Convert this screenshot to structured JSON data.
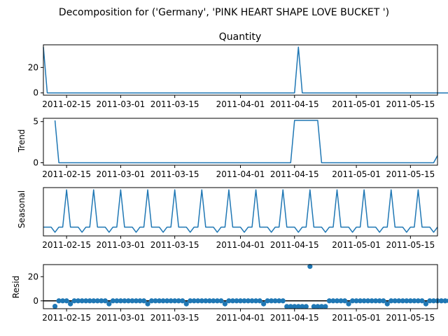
{
  "title": "Decomposition for ('Germany', 'PINK  HEART SHAPE LOVE BUCKET ')",
  "x_tick_labels": [
    "2011-02-15",
    "2011-03-01",
    "2011-03-15",
    "2011-04-01",
    "2011-04-15",
    "2011-05-01",
    "2011-05-15"
  ],
  "colors": {
    "line": "#1f77b4",
    "axis": "#000000",
    "background": "#ffffff"
  },
  "chart_data": [
    {
      "type": "line",
      "title": "Quantity",
      "ylabel": "",
      "x_start": "2011-02-09",
      "x_end": "2011-05-22",
      "ylim": [
        -1.8,
        37.8
      ],
      "yticks": [
        0,
        20
      ],
      "values": [
        36,
        0,
        0,
        0,
        0,
        0,
        0,
        0,
        0,
        0,
        0,
        0,
        0,
        0,
        0,
        0,
        0,
        0,
        0,
        0,
        0,
        0,
        0,
        0,
        0,
        0,
        0,
        0,
        0,
        0,
        0,
        0,
        0,
        0,
        0,
        0,
        0,
        0,
        0,
        0,
        0,
        0,
        0,
        0,
        0,
        0,
        0,
        0,
        0,
        0,
        0,
        0,
        0,
        0,
        0,
        0,
        0,
        0,
        0,
        0,
        0,
        0,
        0,
        0,
        0,
        0,
        36,
        0,
        0,
        0,
        0,
        0,
        0,
        0,
        0,
        0,
        0,
        0,
        0,
        0,
        0,
        0,
        0,
        0,
        0,
        0,
        0,
        0,
        0,
        0,
        0,
        0,
        0,
        0,
        0,
        0,
        0,
        0,
        0,
        0,
        0,
        0,
        0,
        0,
        0,
        0,
        0,
        0,
        0,
        0,
        0,
        0,
        0,
        0,
        0,
        0,
        0,
        0,
        0,
        0,
        0,
        0,
        0,
        0,
        0,
        0,
        0,
        0,
        0,
        0,
        0,
        0,
        0,
        0,
        0,
        0,
        0,
        0,
        0,
        0,
        0,
        0,
        0,
        0,
        0,
        0,
        0,
        6
      ]
    },
    {
      "type": "line",
      "title": "",
      "ylabel": "Trend",
      "x_start": "2011-02-12",
      "x_end": "2011-05-19",
      "ylim": [
        -0.3,
        5.4
      ],
      "yticks": [
        0,
        5
      ],
      "values": [
        5.14,
        0,
        0,
        0,
        0,
        0,
        0,
        0,
        0,
        0,
        0,
        0,
        0,
        0,
        0,
        0,
        0,
        0,
        0,
        0,
        0,
        0,
        0,
        0,
        0,
        0,
        0,
        0,
        0,
        0,
        0,
        0,
        0,
        0,
        0,
        0,
        0,
        0,
        0,
        0,
        0,
        0,
        0,
        0,
        0,
        0,
        0,
        0,
        0,
        0,
        0,
        0,
        0,
        0,
        0,
        0,
        0,
        0,
        0,
        0,
        0,
        0,
        5.14,
        5.14,
        5.14,
        5.14,
        5.14,
        5.14,
        5.14,
        0,
        0,
        0,
        0,
        0,
        0,
        0,
        0,
        0,
        0,
        0,
        0,
        0,
        0,
        0,
        0,
        0,
        0,
        0,
        0,
        0,
        0,
        0,
        0,
        0,
        0,
        0,
        0,
        0,
        0,
        0.86
      ]
    },
    {
      "type": "line",
      "title": "",
      "ylabel": "Seasonal",
      "x_start": "2011-02-09",
      "x_end": "2011-05-22",
      "ylim": [
        -0.9,
        2.4
      ],
      "yticks": [],
      "period": [
        -0.3,
        -0.3,
        -0.3,
        -0.65,
        -0.3,
        -0.3,
        2.25
      ]
    },
    {
      "type": "scatter",
      "title": "",
      "ylabel": "Resid",
      "x_start": "2011-02-12",
      "x_end": "2011-05-19",
      "ylim": [
        -6.5,
        30
      ],
      "yticks": [
        0,
        20
      ],
      "zero_line": true,
      "values": [
        -4.5,
        0,
        0,
        0,
        -2.5,
        0,
        0,
        0,
        0,
        0,
        0,
        0,
        0,
        0,
        -2.5,
        0,
        0,
        0,
        0,
        0,
        0,
        0,
        0,
        0,
        -2.5,
        0,
        0,
        0,
        0,
        0,
        0,
        0,
        0,
        0,
        -2.5,
        0,
        0,
        0,
        0,
        0,
        0,
        0,
        0,
        0,
        -2.5,
        0,
        0,
        0,
        0,
        0,
        0,
        0,
        0,
        0,
        -2.5,
        0,
        0,
        0,
        0,
        0,
        -4.7,
        -4.7,
        -4.7,
        -4.7,
        -4.7,
        -4.7,
        28.5,
        -4.7,
        -4.7,
        -4.7,
        -4.7,
        0,
        0,
        0,
        0,
        0,
        -2.5,
        0,
        0,
        0,
        0,
        0,
        0,
        0,
        0,
        0,
        -2.5,
        0,
        0,
        0,
        0,
        0,
        0,
        0,
        0,
        0,
        -2.5,
        0,
        0,
        0,
        0,
        0,
        0,
        0,
        0,
        0,
        -2.5,
        0,
        0,
        0,
        0,
        0,
        0,
        0,
        0,
        0,
        -2.5
      ]
    }
  ]
}
